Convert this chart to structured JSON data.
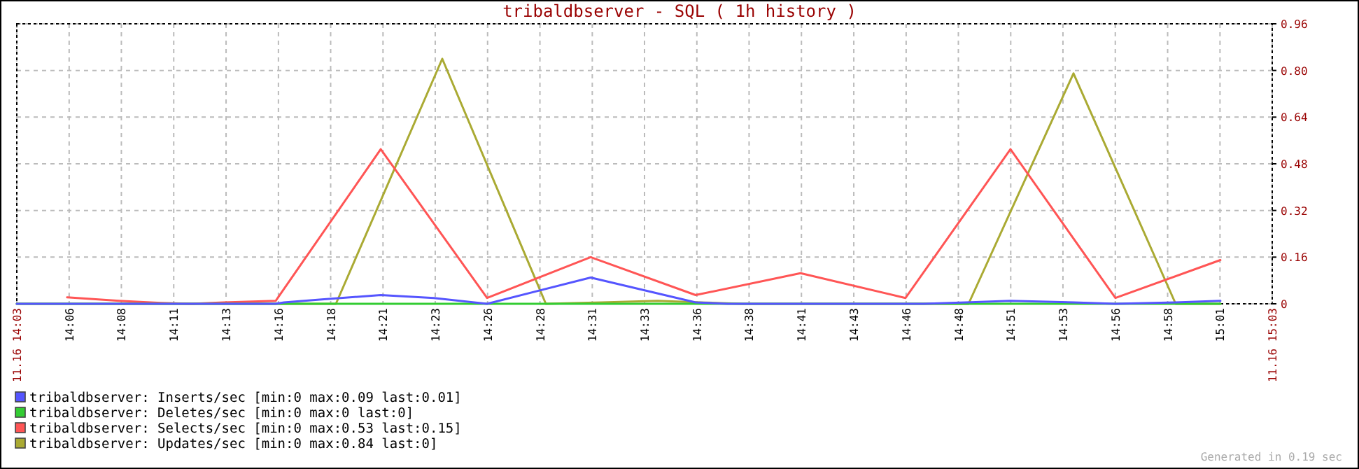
{
  "chart_data": {
    "type": "line",
    "title": "tribaldbserver - SQL ( 1h history )",
    "xlim": [
      14.05,
      15.05
    ],
    "xticks": [
      {
        "value": 14.05,
        "label": "11.16 14:03"
      },
      {
        "value": 14.0917,
        "label": "14:06"
      },
      {
        "value": 14.1333,
        "label": "14:08"
      },
      {
        "value": 14.175,
        "label": "14:11"
      },
      {
        "value": 14.2167,
        "label": "14:13"
      },
      {
        "value": 14.2584,
        "label": "14:16"
      },
      {
        "value": 14.3,
        "label": "14:18"
      },
      {
        "value": 14.3417,
        "label": "14:21"
      },
      {
        "value": 14.3833,
        "label": "14:23"
      },
      {
        "value": 14.425,
        "label": "14:26"
      },
      {
        "value": 14.4667,
        "label": "14:28"
      },
      {
        "value": 14.5084,
        "label": "14:31"
      },
      {
        "value": 14.55,
        "label": "14:33"
      },
      {
        "value": 14.5917,
        "label": "14:36"
      },
      {
        "value": 14.6333,
        "label": "14:38"
      },
      {
        "value": 14.675,
        "label": "14:41"
      },
      {
        "value": 14.7167,
        "label": "14:43"
      },
      {
        "value": 14.7584,
        "label": "14:46"
      },
      {
        "value": 14.8,
        "label": "14:48"
      },
      {
        "value": 14.8417,
        "label": "14:51"
      },
      {
        "value": 14.8833,
        "label": "14:53"
      },
      {
        "value": 14.925,
        "label": "14:56"
      },
      {
        "value": 14.9667,
        "label": "14:58"
      },
      {
        "value": 15.0084,
        "label": "15:01"
      },
      {
        "value": 15.05,
        "label": "11.16 15:03"
      }
    ],
    "ylim": [
      0,
      0.96
    ],
    "yticks": [
      0,
      0.16,
      0.32,
      0.48,
      0.64,
      {
        "value": 0.8,
        "label": "0.80"
      },
      0.96
    ],
    "grid": true,
    "legend": "bottom",
    "marker": "none",
    "line_style": "solid",
    "annotations": [
      "Generated in 0.19 sec"
    ],
    "series": [
      {
        "name": "tribaldbserver: Inserts/sec [min:0 max:0.09 last:0.01]",
        "color": "#5555ff",
        "x": [
          14.05,
          14.2562,
          14.2629,
          14.293,
          14.3399,
          14.3822,
          14.4246,
          14.5071,
          14.5907,
          14.6163,
          14.7724,
          14.8059,
          14.8415,
          14.8917,
          14.9251,
          14.9731,
          15.0087
        ],
        "values": [
          0,
          0,
          0.005,
          0.015,
          0.03,
          0.02,
          0,
          0.09,
          0.005,
          0,
          0,
          0.005,
          0.01,
          0.005,
          0,
          0.005,
          0.01
        ]
      },
      {
        "name": "tribaldbserver: Deletes/sec [min:0 max:0 last:0]",
        "color": "#33cc33",
        "x": [
          14.05,
          15.0087
        ],
        "values": [
          0,
          0
        ]
      },
      {
        "name": "tribaldbserver: Selects/sec [min:0 max:0.53 last:0.15]",
        "color": "#ff5555",
        "x": [
          14.0901,
          14.1314,
          14.1648,
          14.1894,
          14.215,
          14.2562,
          14.3399,
          14.4246,
          14.5071,
          14.5907,
          14.6743,
          14.7579,
          14.8415,
          14.9251,
          15.0087
        ],
        "values": [
          0.022,
          0.01,
          0.003,
          0,
          0.005,
          0.01,
          0.53,
          0.02,
          0.16,
          0.03,
          0.105,
          0.02,
          0.53,
          0.02,
          0.15
        ]
      },
      {
        "name": "tribaldbserver: Updates/sec [min:0 max:0.84 last:0]",
        "color": "#aaaa33",
        "x": [
          14.05,
          14.3042,
          14.3889,
          14.4714,
          14.516,
          14.5606,
          14.594,
          14.6275,
          14.8081,
          14.8917,
          14.9731,
          15.0087
        ],
        "values": [
          0,
          0,
          0.84,
          0,
          0.005,
          0.01,
          0.005,
          0,
          0,
          0.79,
          0,
          0
        ]
      }
    ]
  }
}
